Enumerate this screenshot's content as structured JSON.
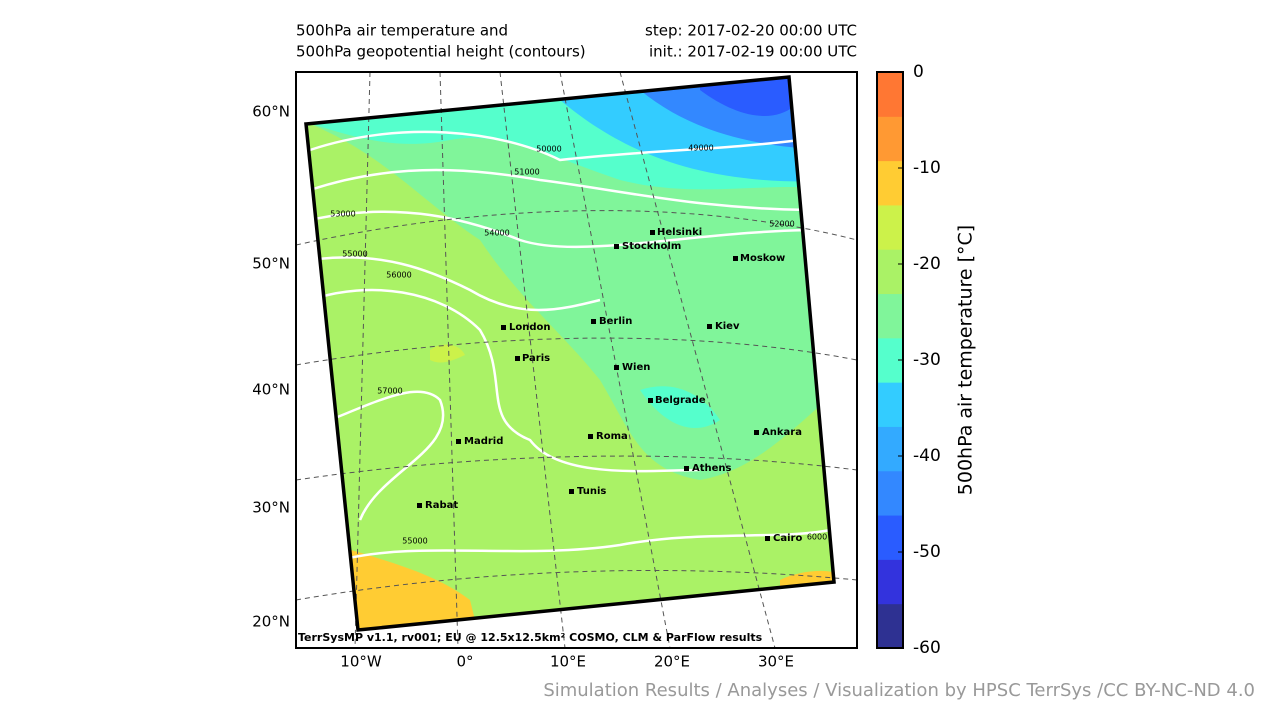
{
  "title": [
    "500hPa air temperature and",
    "500hPa geopotential height (contours)"
  ],
  "step": "step: 2017-02-20 00:00 UTC",
  "init": "init.: 2017-02-19 00:00 UTC",
  "lat_labels": [
    "60°N",
    "50°N",
    "40°N",
    "30°N",
    "20°N"
  ],
  "lon_labels": [
    "10°W",
    "0°",
    "10°E",
    "20°E",
    "30°E"
  ],
  "cities": [
    "Helsinki",
    "Stockholm",
    "Moskow",
    "Berlin",
    "London",
    "Kiev",
    "Paris",
    "Wien",
    "Belgrade",
    "Madrid",
    "Roma",
    "Ankara",
    "Athens",
    "Tunis",
    "Rabat",
    "Cairo"
  ],
  "contour_labels": [
    50000,
    49000,
    51000,
    53000,
    54000,
    52000,
    55000,
    56000,
    57000,
    55000,
    6000
  ],
  "footer": "TerrSysMP v1.1, rv001; EU @ 12.5x12.5km² COSMO, CLM & ParFlow results",
  "credit": "Simulation Results / Analyses / Visualization by HPSC TerrSys /CC BY-NC-ND 4.0",
  "colorbar": {
    "label": "500hPa air temperature [°C]",
    "lim": [
      -60,
      0
    ],
    "ticks": [
      0,
      -10,
      -20,
      -30,
      -40,
      -50,
      -60
    ],
    "colors": [
      "#2e3192",
      "#3333dd",
      "#2a5cff",
      "#3388ff",
      "#33aaff",
      "#33ccff",
      "#55ffcc",
      "#80f59a",
      "#aaf266",
      "#ccf24a",
      "#ffcc33",
      "#ff9933",
      "#ff7733"
    ]
  }
}
